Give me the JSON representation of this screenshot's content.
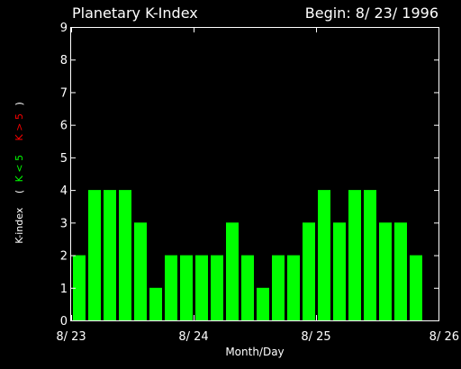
{
  "header": {
    "title": "Planetary K-Index",
    "begin": "Begin: 8/ 23/ 1996"
  },
  "colors": {
    "background": "#000000",
    "foreground": "#ffffff",
    "bar": "#00ff00",
    "low_label": "#00ff00",
    "high_label": "#ff0000"
  },
  "chart_data": {
    "type": "bar",
    "ylabel": {
      "main": "K-index",
      "open": "(",
      "low": "K < 5",
      "high": "K > 5",
      "close": ")"
    },
    "xlabel": "Month/Day",
    "ylim": [
      0,
      9
    ],
    "yticks": [
      "0",
      "1",
      "2",
      "3",
      "4",
      "5",
      "6",
      "7",
      "8",
      "9"
    ],
    "xlim": [
      0,
      24
    ],
    "xticks": [
      {
        "label": "8/ 23",
        "at": 0
      },
      {
        "label": "8/ 24",
        "at": 8
      },
      {
        "label": "8/ 25",
        "at": 16
      },
      {
        "label": "8/ 26",
        "at": 24
      }
    ],
    "values": [
      2,
      4,
      4,
      4,
      3,
      1,
      2,
      2,
      2,
      2,
      3,
      2,
      1,
      2,
      2,
      3,
      4,
      3,
      4,
      4,
      3,
      3,
      2
    ],
    "grid": false
  }
}
